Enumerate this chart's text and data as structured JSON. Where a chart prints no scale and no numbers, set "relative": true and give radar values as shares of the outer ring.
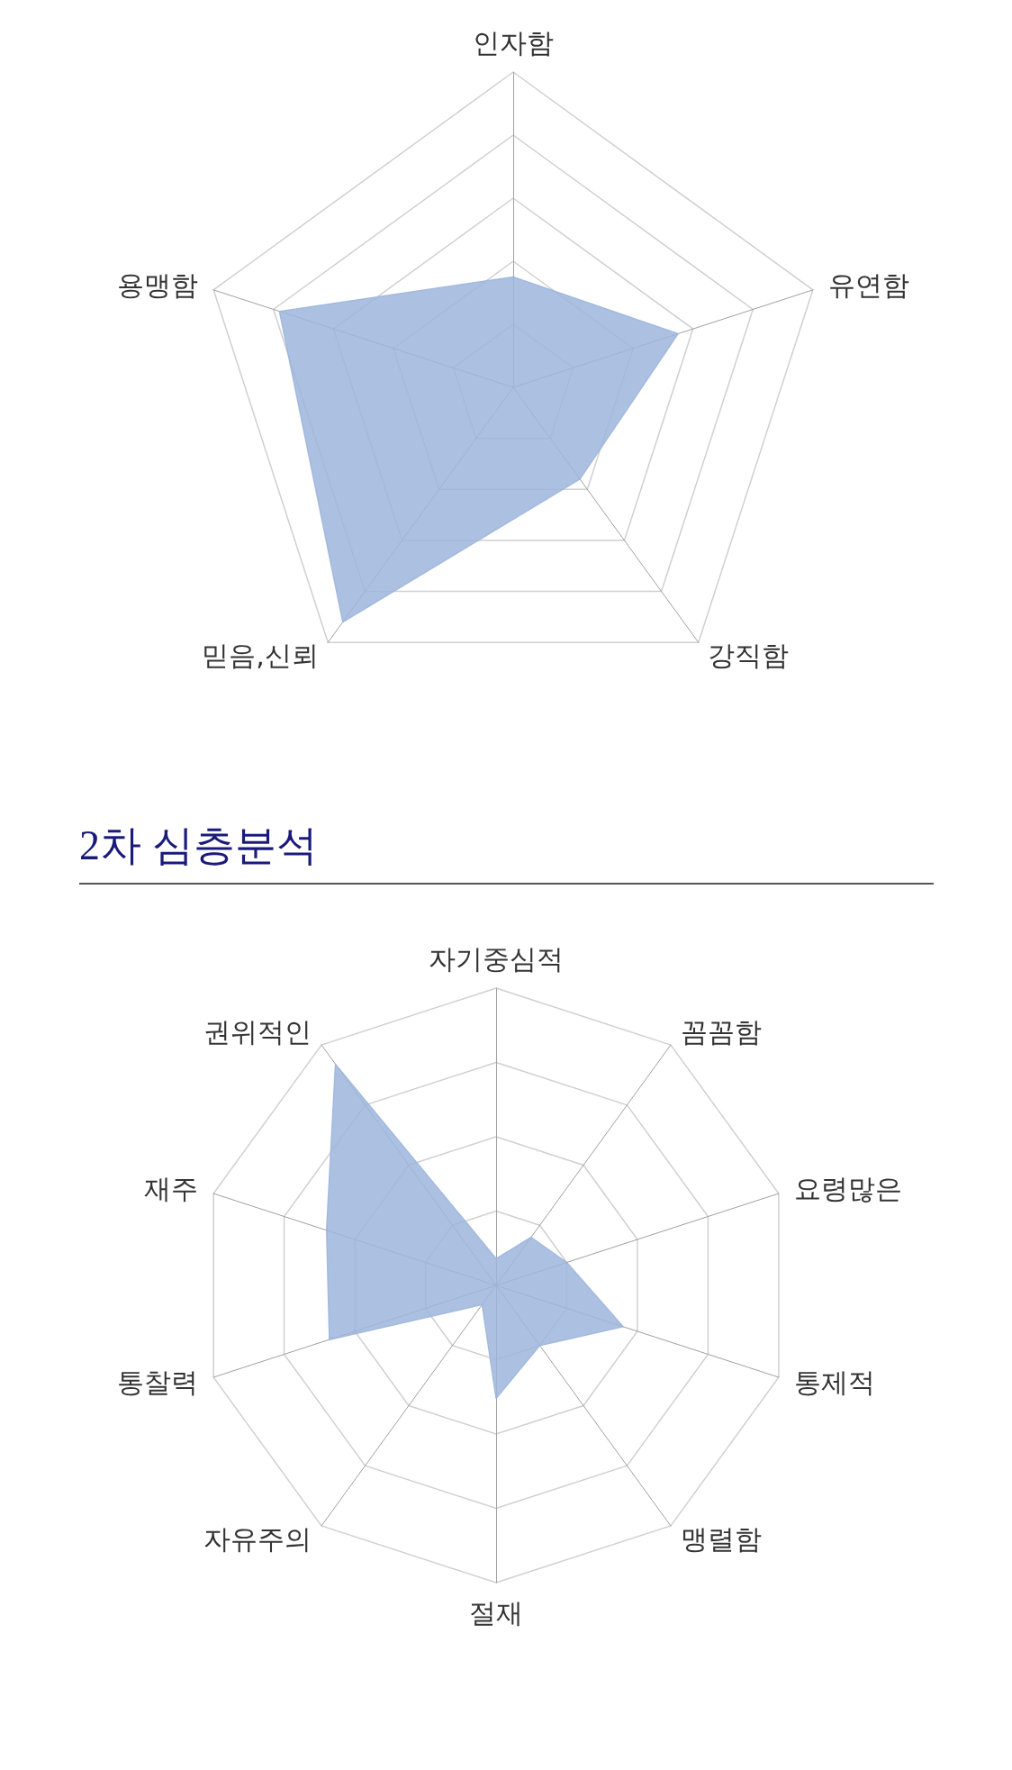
{
  "chart_data": [
    {
      "type": "radar",
      "relative": true,
      "categories": [
        "인자함",
        "유연함",
        "강직함",
        "믿음,신뢰",
        "용맹함"
      ],
      "series": [
        {
          "color": "#9db6dc",
          "values": [
            0.35,
            0.55,
            0.36,
            0.92,
            0.78
          ]
        }
      ]
    },
    {
      "type": "radar",
      "relative": true,
      "title": "2차 심층분석",
      "categories": [
        "자기중심적",
        "꼼꼼함",
        "요령많은",
        "통제적",
        "맹렬함",
        "절재",
        "자유주의",
        "통찰력",
        "재주",
        "권위적인"
      ],
      "series": [
        {
          "color": "#9db6dc",
          "values": [
            0.09,
            0.2,
            0.25,
            0.45,
            0.25,
            0.38,
            0.08,
            0.59,
            0.6,
            0.92
          ]
        }
      ]
    }
  ]
}
